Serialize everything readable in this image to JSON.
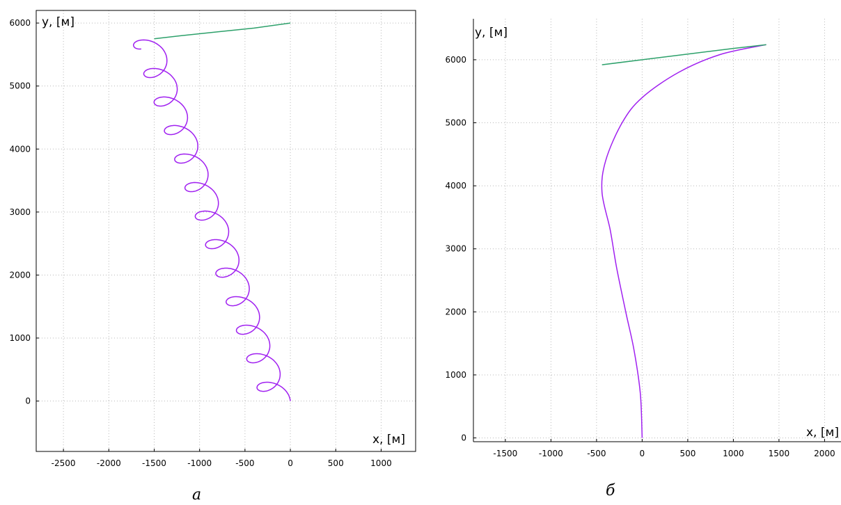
{
  "chart_data": [
    {
      "type": "line",
      "caption": "a",
      "xlabel": "x, [м]",
      "ylabel": "y, [м]",
      "xlim": [
        -2800,
        1380
      ],
      "ylim": [
        -800,
        6200
      ],
      "xticks": [
        -2500,
        -2000,
        -1500,
        -1000,
        -500,
        0,
        500,
        1000
      ],
      "yticks": [
        0,
        1000,
        2000,
        3000,
        4000,
        5000,
        6000
      ],
      "grid": true,
      "series": [
        {
          "color": "#a020f0",
          "shape": "zigzag",
          "start": [
            0,
            0
          ],
          "end": [
            -1440,
            5750
          ],
          "drift_per_cycle": [
            -96,
            450
          ],
          "amplitude": 155,
          "cycles": 12.7
        },
        {
          "color": "#2ca06a",
          "points": [
            [
              -1500,
              5750
            ],
            [
              -1200,
              5800
            ],
            [
              -800,
              5860
            ],
            [
              -400,
              5920
            ],
            [
              0,
              6000
            ]
          ]
        }
      ]
    },
    {
      "type": "line",
      "caption": "б",
      "xlabel": "x, [м]",
      "ylabel": "y, [м]",
      "xlim": [
        -1850,
        2180
      ],
      "ylim": [
        -60,
        6650
      ],
      "xticks": [
        -1500,
        -1000,
        -500,
        0,
        500,
        1000,
        1500,
        2000
      ],
      "yticks": [
        0,
        1000,
        2000,
        3000,
        4000,
        5000,
        6000
      ],
      "grid": true,
      "series": [
        {
          "color": "#a020f0",
          "points": [
            [
              0,
              0
            ],
            [
              -20,
              700
            ],
            [
              -90,
              1400
            ],
            [
              -180,
              2000
            ],
            [
              -280,
              2700
            ],
            [
              -350,
              3300
            ],
            [
              -440,
              3900
            ],
            [
              -400,
              4400
            ],
            [
              -220,
              5000
            ],
            [
              0,
              5400
            ],
            [
              400,
              5800
            ],
            [
              850,
              6080
            ],
            [
              1360,
              6240
            ]
          ]
        },
        {
          "color": "#2ca06a",
          "points": [
            [
              -440,
              5920
            ],
            [
              0,
              6000
            ],
            [
              500,
              6090
            ],
            [
              1000,
              6180
            ],
            [
              1360,
              6240
            ]
          ]
        }
      ]
    }
  ]
}
